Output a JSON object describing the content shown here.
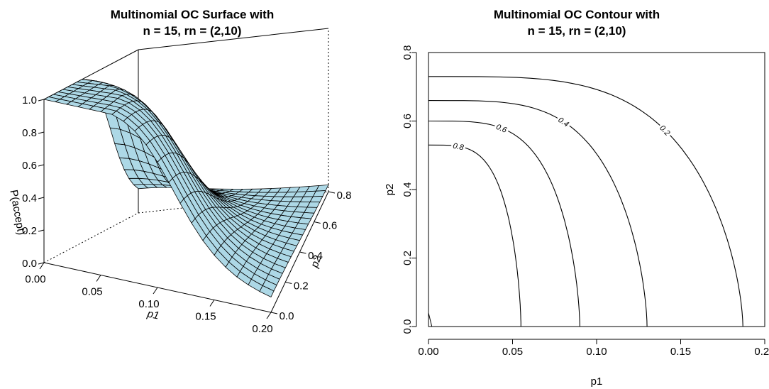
{
  "chart_data": [
    {
      "type": "surface",
      "title_line1": "Multinomial OC Surface with",
      "title_line2": "n = 15, rn = (2,10)",
      "xlabel": "p1",
      "ylabel": "p2",
      "zlabel": "P(accept)",
      "xlim": [
        0,
        0.2
      ],
      "ylim": [
        0,
        0.8
      ],
      "zlim": [
        0,
        1
      ],
      "x_ticks": [
        "0.00",
        "0.05",
        "0.10",
        "0.15",
        "0.20"
      ],
      "y_ticks": [
        "0.0",
        "0.2",
        "0.4",
        "0.6",
        "0.8"
      ],
      "z_ticks": [
        "0.0",
        "0.2",
        "0.4",
        "0.6",
        "0.8",
        "1.0"
      ],
      "surface_color": "#add8e6",
      "grid_n": 20
    },
    {
      "type": "contour",
      "title_line1": "Multinomial OC Contour with",
      "title_line2": "n = 15, rn = (2,10)",
      "xlabel": "p1",
      "ylabel": "p2",
      "xlim": [
        0,
        0.2
      ],
      "ylim": [
        0,
        0.8
      ],
      "x_ticks": [
        "0.00",
        "0.05",
        "0.10",
        "0.15",
        "0.20"
      ],
      "y_ticks": [
        "0.0",
        "0.2",
        "0.4",
        "0.6",
        "0.8"
      ],
      "levels": [
        {
          "label": "0.8",
          "p1_at_p2_zero": 0.055,
          "p2_at_p1_zero": 0.53
        },
        {
          "label": "0.6",
          "p1_at_p2_zero": 0.09,
          "p2_at_p1_zero": 0.6
        },
        {
          "label": "0.4",
          "p1_at_p2_zero": 0.13,
          "p2_at_p1_zero": 0.66
        },
        {
          "label": "0.2",
          "p1_at_p2_zero": 0.187,
          "p2_at_p1_zero": 0.73
        }
      ]
    }
  ]
}
